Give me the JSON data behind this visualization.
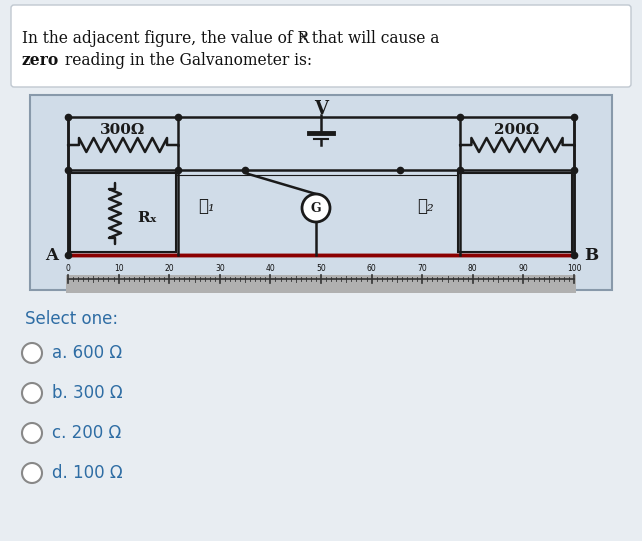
{
  "bg_color": "#e8edf2",
  "title_box_color": "#ffffff",
  "circuit_box_color": "#d0dce8",
  "options_color": "#2e6da4",
  "wire_color": "#1a1a1a",
  "r300_label": "300Ω",
  "r200_label": "200Ω",
  "rx_label": "Rₓ",
  "v_label": "V",
  "i1_label": "ℓ₁",
  "i2_label": "ℓ₂",
  "a_label": "A",
  "b_label": "B",
  "g_label": "G",
  "select_text": "Select one:",
  "options": [
    "a. 600 Ω",
    "b. 300 Ω",
    "c. 200 Ω",
    "d. 100 Ω"
  ],
  "ruler_ticks": [
    0,
    10,
    20,
    30,
    40,
    50,
    60,
    70,
    80,
    90,
    100
  ]
}
